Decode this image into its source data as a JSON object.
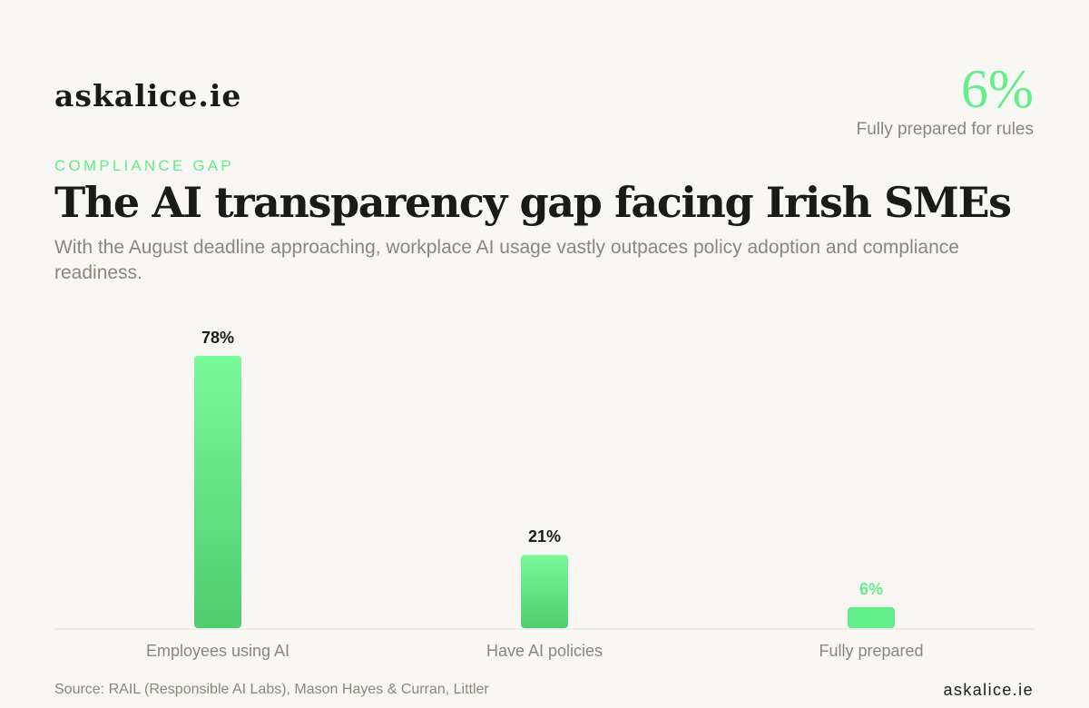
{
  "brand": "askalice.ie",
  "headline_stat": {
    "value": "6%",
    "caption": "Fully prepared for rules"
  },
  "eyebrow": "COMPLIANCE GAP",
  "title": "The AI transparency gap facing Irish SMEs",
  "subtitle": "With the August deadline approaching, workplace AI usage vastly outpaces policy adoption and compliance readiness.",
  "source": "Source: RAIL (Responsible AI Labs), Mason Hayes & Curran, Littler",
  "footer_brand": "askalice.ie",
  "colors": {
    "accent": "#63ee8c",
    "bar_top": "#79f99a",
    "bar_bottom": "#4fcd6e",
    "text_dark": "#1a1a17",
    "text_muted": "#8c857d",
    "background": "#f9f7f3"
  },
  "chart_data": {
    "type": "bar",
    "categories": [
      "Employees using AI",
      "Have AI policies",
      "Fully prepared"
    ],
    "values": [
      78,
      21,
      6
    ],
    "value_labels": [
      "78%",
      "21%",
      "6%"
    ],
    "highlight_index": 2,
    "ylim": [
      0,
      78
    ],
    "grid": false,
    "legend": "none",
    "xlabel": "",
    "ylabel": ""
  }
}
